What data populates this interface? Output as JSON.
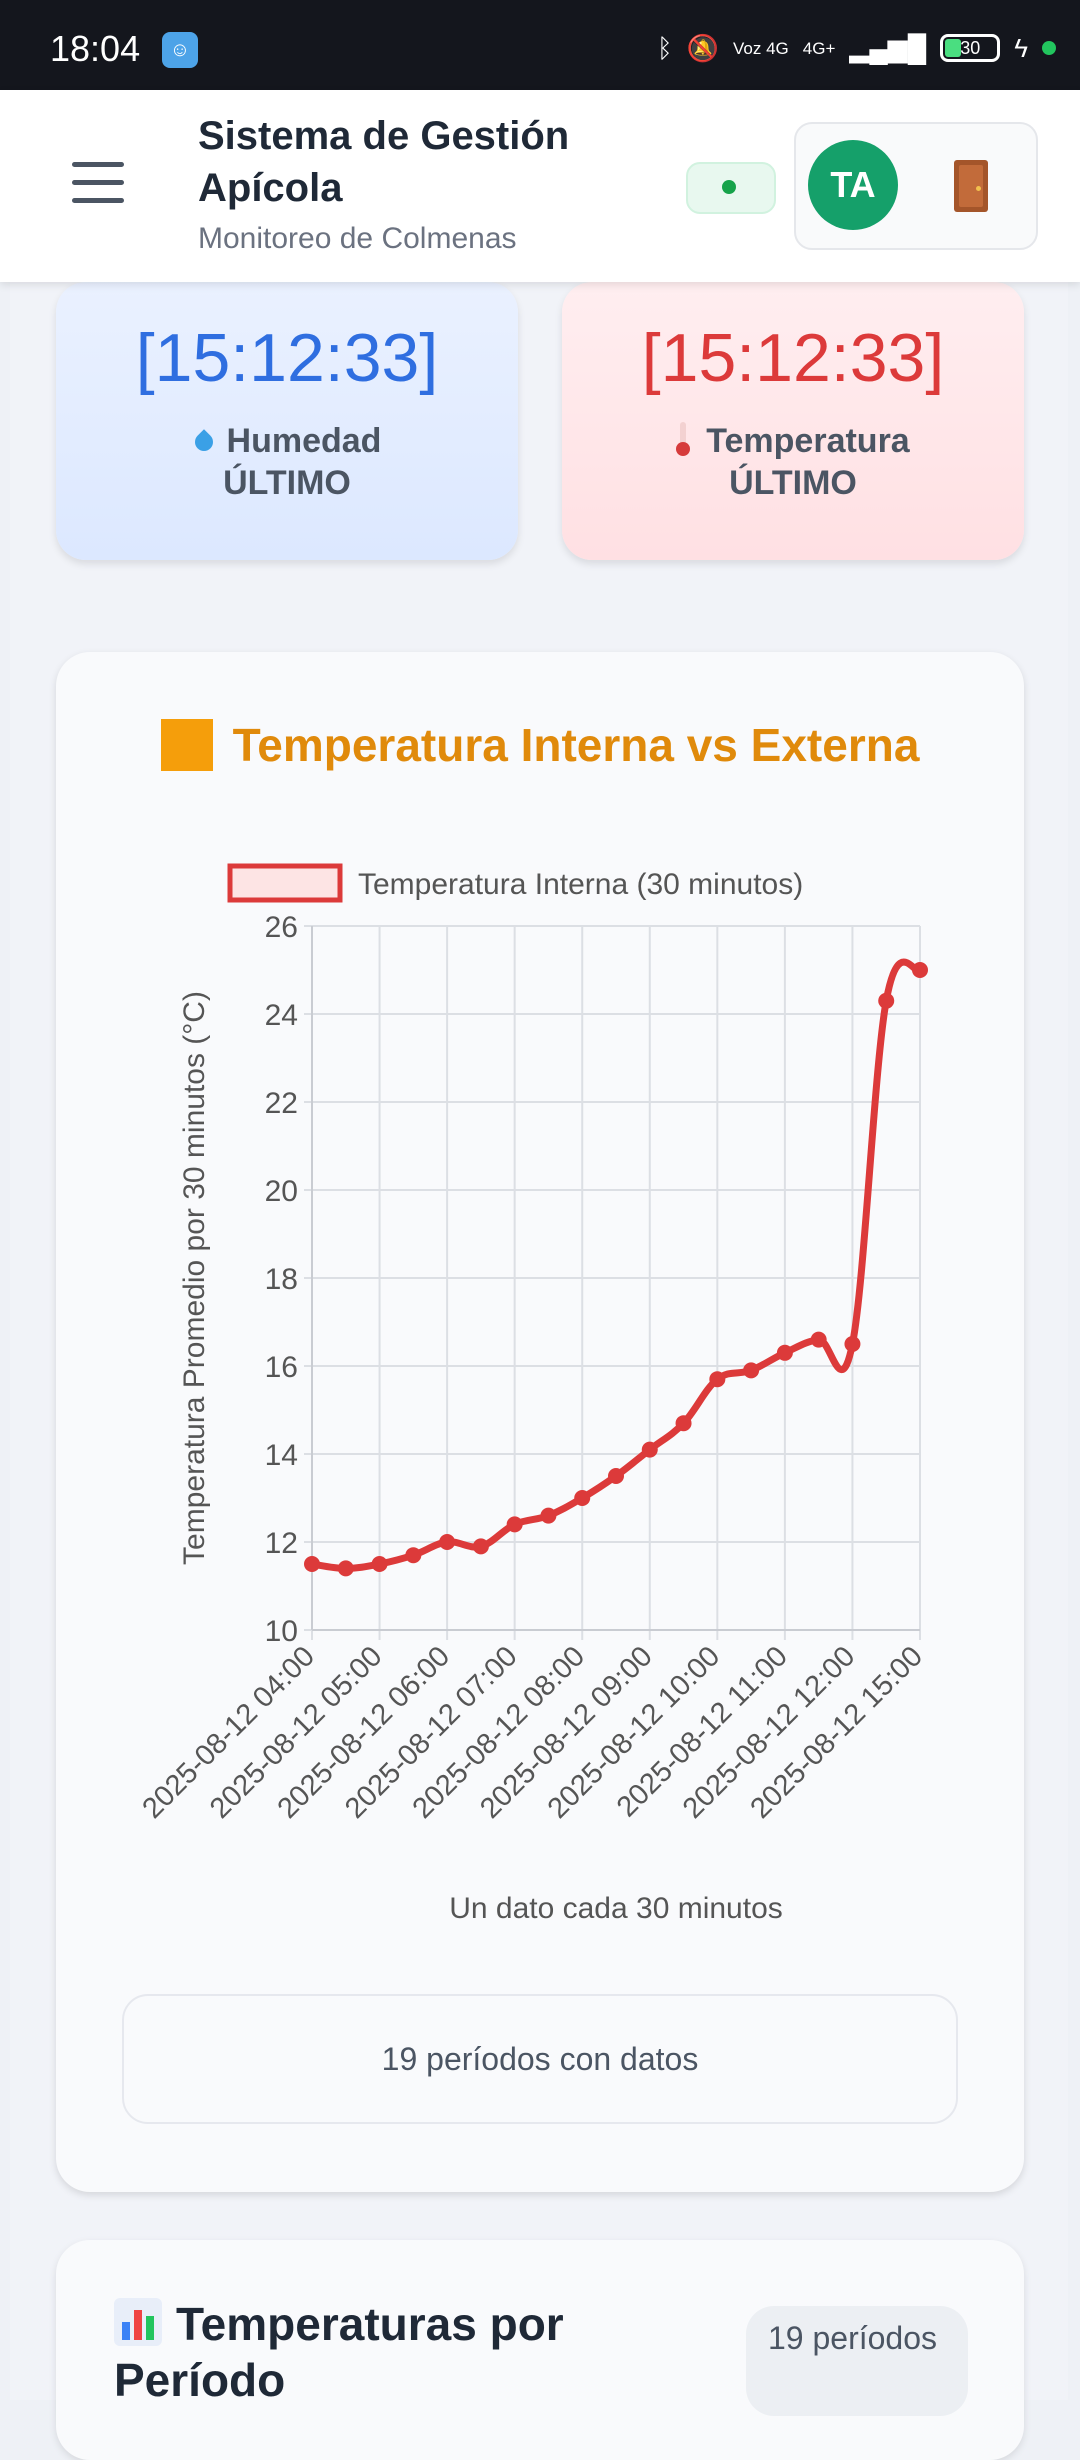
{
  "status_bar": {
    "time": "18:04",
    "network_labels": [
      "Voz 4G",
      "4G+"
    ],
    "battery": "30"
  },
  "header": {
    "title": "Sistema de Gestión Apícola",
    "subtitle": "Monitoreo de Colmenas",
    "avatar_initials": "TA",
    "logout_icon": "door-icon"
  },
  "stats": {
    "humidity": {
      "time": "[15:12:33]",
      "label": "Humedad",
      "sublabel": "ÚLTIMO",
      "icon": "droplet-icon"
    },
    "temperature": {
      "time": "[15:12:33]",
      "label": "Temperatura",
      "sublabel": "ÚLTIMO",
      "icon": "thermometer-icon"
    }
  },
  "chart_card": {
    "heading": "Temperatura Interna vs Externa",
    "footer": "19 períodos con datos"
  },
  "chart_data": {
    "type": "line",
    "title": "",
    "xlabel": "Un dato cada 30 minutos",
    "ylabel": "Temperatura Promedio por 30 minutos (°C)",
    "ylim": [
      10,
      26
    ],
    "yticks": [
      10,
      12,
      14,
      16,
      18,
      20,
      22,
      24,
      26
    ],
    "xtick_labels": [
      "2025-08-12 04:00",
      "2025-08-12 05:00",
      "2025-08-12 06:00",
      "2025-08-12 07:00",
      "2025-08-12 08:00",
      "2025-08-12 09:00",
      "2025-08-12 10:00",
      "2025-08-12 11:00",
      "2025-08-12 12:00",
      "2025-08-12 15:00"
    ],
    "legend_position": "top",
    "grid": true,
    "series": [
      {
        "name": "Temperatura Interna (30 minutos)",
        "color": "#dc3a3a",
        "values": [
          11.5,
          11.4,
          11.5,
          11.7,
          12.0,
          11.9,
          12.4,
          12.6,
          13.0,
          13.5,
          14.1,
          14.7,
          15.7,
          15.9,
          16.3,
          16.6,
          16.5,
          24.3,
          25.0
        ]
      }
    ]
  },
  "card2": {
    "title": "Temperaturas por Período",
    "badge": "19 períodos"
  }
}
